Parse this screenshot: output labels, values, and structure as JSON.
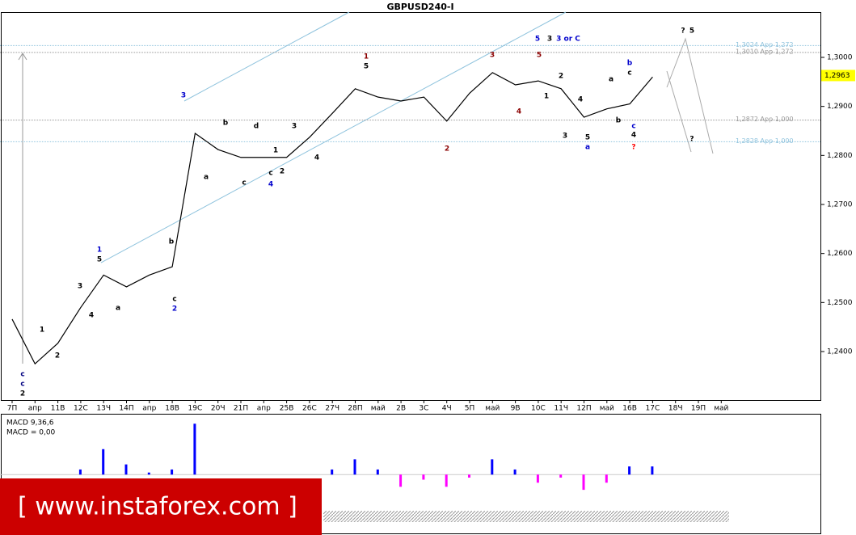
{
  "chart_data": {
    "type": "line",
    "title": "GBPUSD240-I",
    "categories": [
      "7П",
      "апр",
      "11В",
      "12С",
      "13Ч",
      "14П",
      "апр",
      "18В",
      "19С",
      "20Ч",
      "21П",
      "апр",
      "25В",
      "26С",
      "27Ч",
      "28П",
      "май",
      "2В",
      "3С",
      "4Ч",
      "5П",
      "май",
      "9В",
      "10С",
      "11Ч",
      "12П",
      "май",
      "16В",
      "17С",
      "18Ч",
      "19П",
      "май"
    ],
    "series": [
      {
        "name": "GBPUSD",
        "color": "#000000",
        "values": [
          1.2466,
          1.2375,
          1.2417,
          1.249,
          1.2556,
          1.2532,
          1.2556,
          1.2573,
          1.2845,
          1.2812,
          1.2796,
          1.2796,
          1.2796,
          1.2837,
          1.2886,
          1.2936,
          1.2919,
          1.2911,
          1.2919,
          1.287,
          1.2927,
          1.2969,
          1.2944,
          1.2952,
          1.2936,
          1.2878,
          1.2895,
          1.2905,
          1.296,
          null,
          null,
          null
        ]
      }
    ],
    "ylim": [
      1.23011,
      1.30923
    ],
    "yticks": [
      {
        "value": 1.24,
        "label": "1,2400"
      },
      {
        "value": 1.25,
        "label": "1,2500"
      },
      {
        "value": 1.26,
        "label": "1,2600"
      },
      {
        "value": 1.27,
        "label": "1,2700"
      },
      {
        "value": 1.28,
        "label": "1,2800"
      },
      {
        "value": 1.29,
        "label": "1,2900"
      },
      {
        "value": 1.3,
        "label": "1,3000"
      }
    ],
    "levels": [
      {
        "value": 1.3024,
        "label": "1,3024 App 1,272",
        "color": "#8fc3dd"
      },
      {
        "value": 1.301,
        "label": "1,3010 App 1,272",
        "color": "#999999"
      },
      {
        "value": 1.2872,
        "label": "1,2872 App 1,000",
        "color": "#999999"
      },
      {
        "value": 1.2828,
        "label": "1,2828 App 1,000",
        "color": "#8fc3dd"
      }
    ],
    "current_price": {
      "value": 1.2963,
      "label": "1,2963"
    },
    "annotations": [
      {
        "text": "c",
        "color": "#000080"
      },
      {
        "text": "c",
        "color": "#000080"
      },
      {
        "text": "2",
        "color": "#000000"
      },
      {
        "text": "1",
        "color": "#000000"
      },
      {
        "text": "2",
        "color": "#000000"
      },
      {
        "text": "3",
        "color": "#000000"
      },
      {
        "text": "4",
        "color": "#000000"
      },
      {
        "text": "1",
        "color": "#0000cc"
      },
      {
        "text": "5",
        "color": "#000000"
      },
      {
        "text": "a",
        "color": "#000000"
      },
      {
        "text": "b",
        "color": "#000000"
      },
      {
        "text": "c",
        "color": "#000000"
      },
      {
        "text": "2",
        "color": "#0000cc"
      },
      {
        "text": "3",
        "color": "#0000cc"
      },
      {
        "text": "a",
        "color": "#000000"
      },
      {
        "text": "b",
        "color": "#000000"
      },
      {
        "text": "c",
        "color": "#000000"
      },
      {
        "text": "d",
        "color": "#000000"
      },
      {
        "text": "4",
        "color": "#0000cc"
      },
      {
        "text": "1",
        "color": "#000000"
      },
      {
        "text": "c",
        "color": "#000000"
      },
      {
        "text": "2",
        "color": "#000000"
      },
      {
        "text": "3",
        "color": "#000000"
      },
      {
        "text": "4",
        "color": "#000000"
      },
      {
        "text": "1",
        "color": "#8b0000"
      },
      {
        "text": "5",
        "color": "#000000"
      },
      {
        "text": "5",
        "color": "#0000cc"
      },
      {
        "text": "3",
        "color": "#000000"
      },
      {
        "text": "3 or C",
        "color": "#0000cc"
      },
      {
        "text": "3",
        "color": "#8b0000"
      },
      {
        "text": "5",
        "color": "#8b0000"
      },
      {
        "text": "4",
        "color": "#8b0000"
      },
      {
        "text": "2",
        "color": "#8b0000"
      },
      {
        "text": "2",
        "color": "#000000"
      },
      {
        "text": "1",
        "color": "#000000"
      },
      {
        "text": "3",
        "color": "#000000"
      },
      {
        "text": "4",
        "color": "#000000"
      },
      {
        "text": "5",
        "color": "#000000"
      },
      {
        "text": "a",
        "color": "#0000cc"
      },
      {
        "text": "a",
        "color": "#000000"
      },
      {
        "text": "b",
        "color": "#0000cc"
      },
      {
        "text": "c",
        "color": "#000000"
      },
      {
        "text": "b",
        "color": "#000000"
      },
      {
        "text": "c",
        "color": "#0000cc"
      },
      {
        "text": "4",
        "color": "#000000"
      },
      {
        "text": "?",
        "color": "#ff0000"
      },
      {
        "text": "?",
        "color": "#000000"
      },
      {
        "text": "5",
        "color": "#000000"
      },
      {
        "text": "?",
        "color": "#000000"
      }
    ],
    "macd": {
      "label": "MACD 9,36,6",
      "value_label": "MACD = 0,00",
      "value": 0,
      "colors": {
        "positive": "#0000ff",
        "negative": "#ff00ff"
      },
      "ylim": [
        -0.003,
        0.0055
      ],
      "values": [
        0,
        0,
        0,
        0.0005,
        0.0025,
        0.001,
        0.0002,
        0.0005,
        0.005,
        0,
        0,
        0,
        0,
        0,
        0.0005,
        0.0015,
        0.0005,
        -0.0012,
        -0.0005,
        -0.0012,
        -0.0003,
        0.0015,
        0.0005,
        -0.0008,
        -0.0003,
        -0.0015,
        -0.0008,
        0.0008,
        0.0008,
        null,
        null,
        null
      ]
    },
    "watermark": "[  www.instaforex.com ]"
  }
}
